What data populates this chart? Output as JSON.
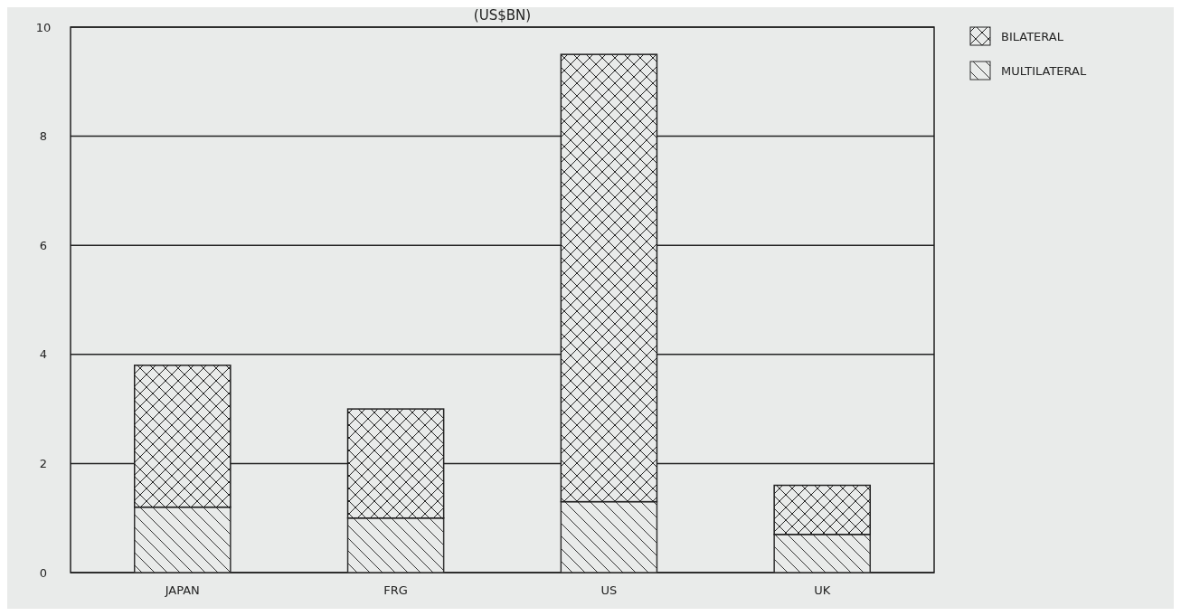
{
  "chart_data": {
    "type": "bar",
    "title": "(US$BN)",
    "categories": [
      "JAPAN",
      "FRG",
      "US",
      "UK"
    ],
    "stacked": true,
    "series": [
      {
        "name": "MULTILATERAL",
        "color": "#333333",
        "values": [
          1.2,
          1.0,
          1.3,
          0.7
        ]
      },
      {
        "name": "BILATERAL",
        "color": "#222222",
        "values": [
          2.6,
          2.0,
          8.2,
          0.9
        ]
      }
    ],
    "ylim": [
      0,
      10
    ],
    "yticks": [
      0,
      2,
      4,
      6,
      8,
      10
    ],
    "grid": "y",
    "legend": "top right"
  }
}
